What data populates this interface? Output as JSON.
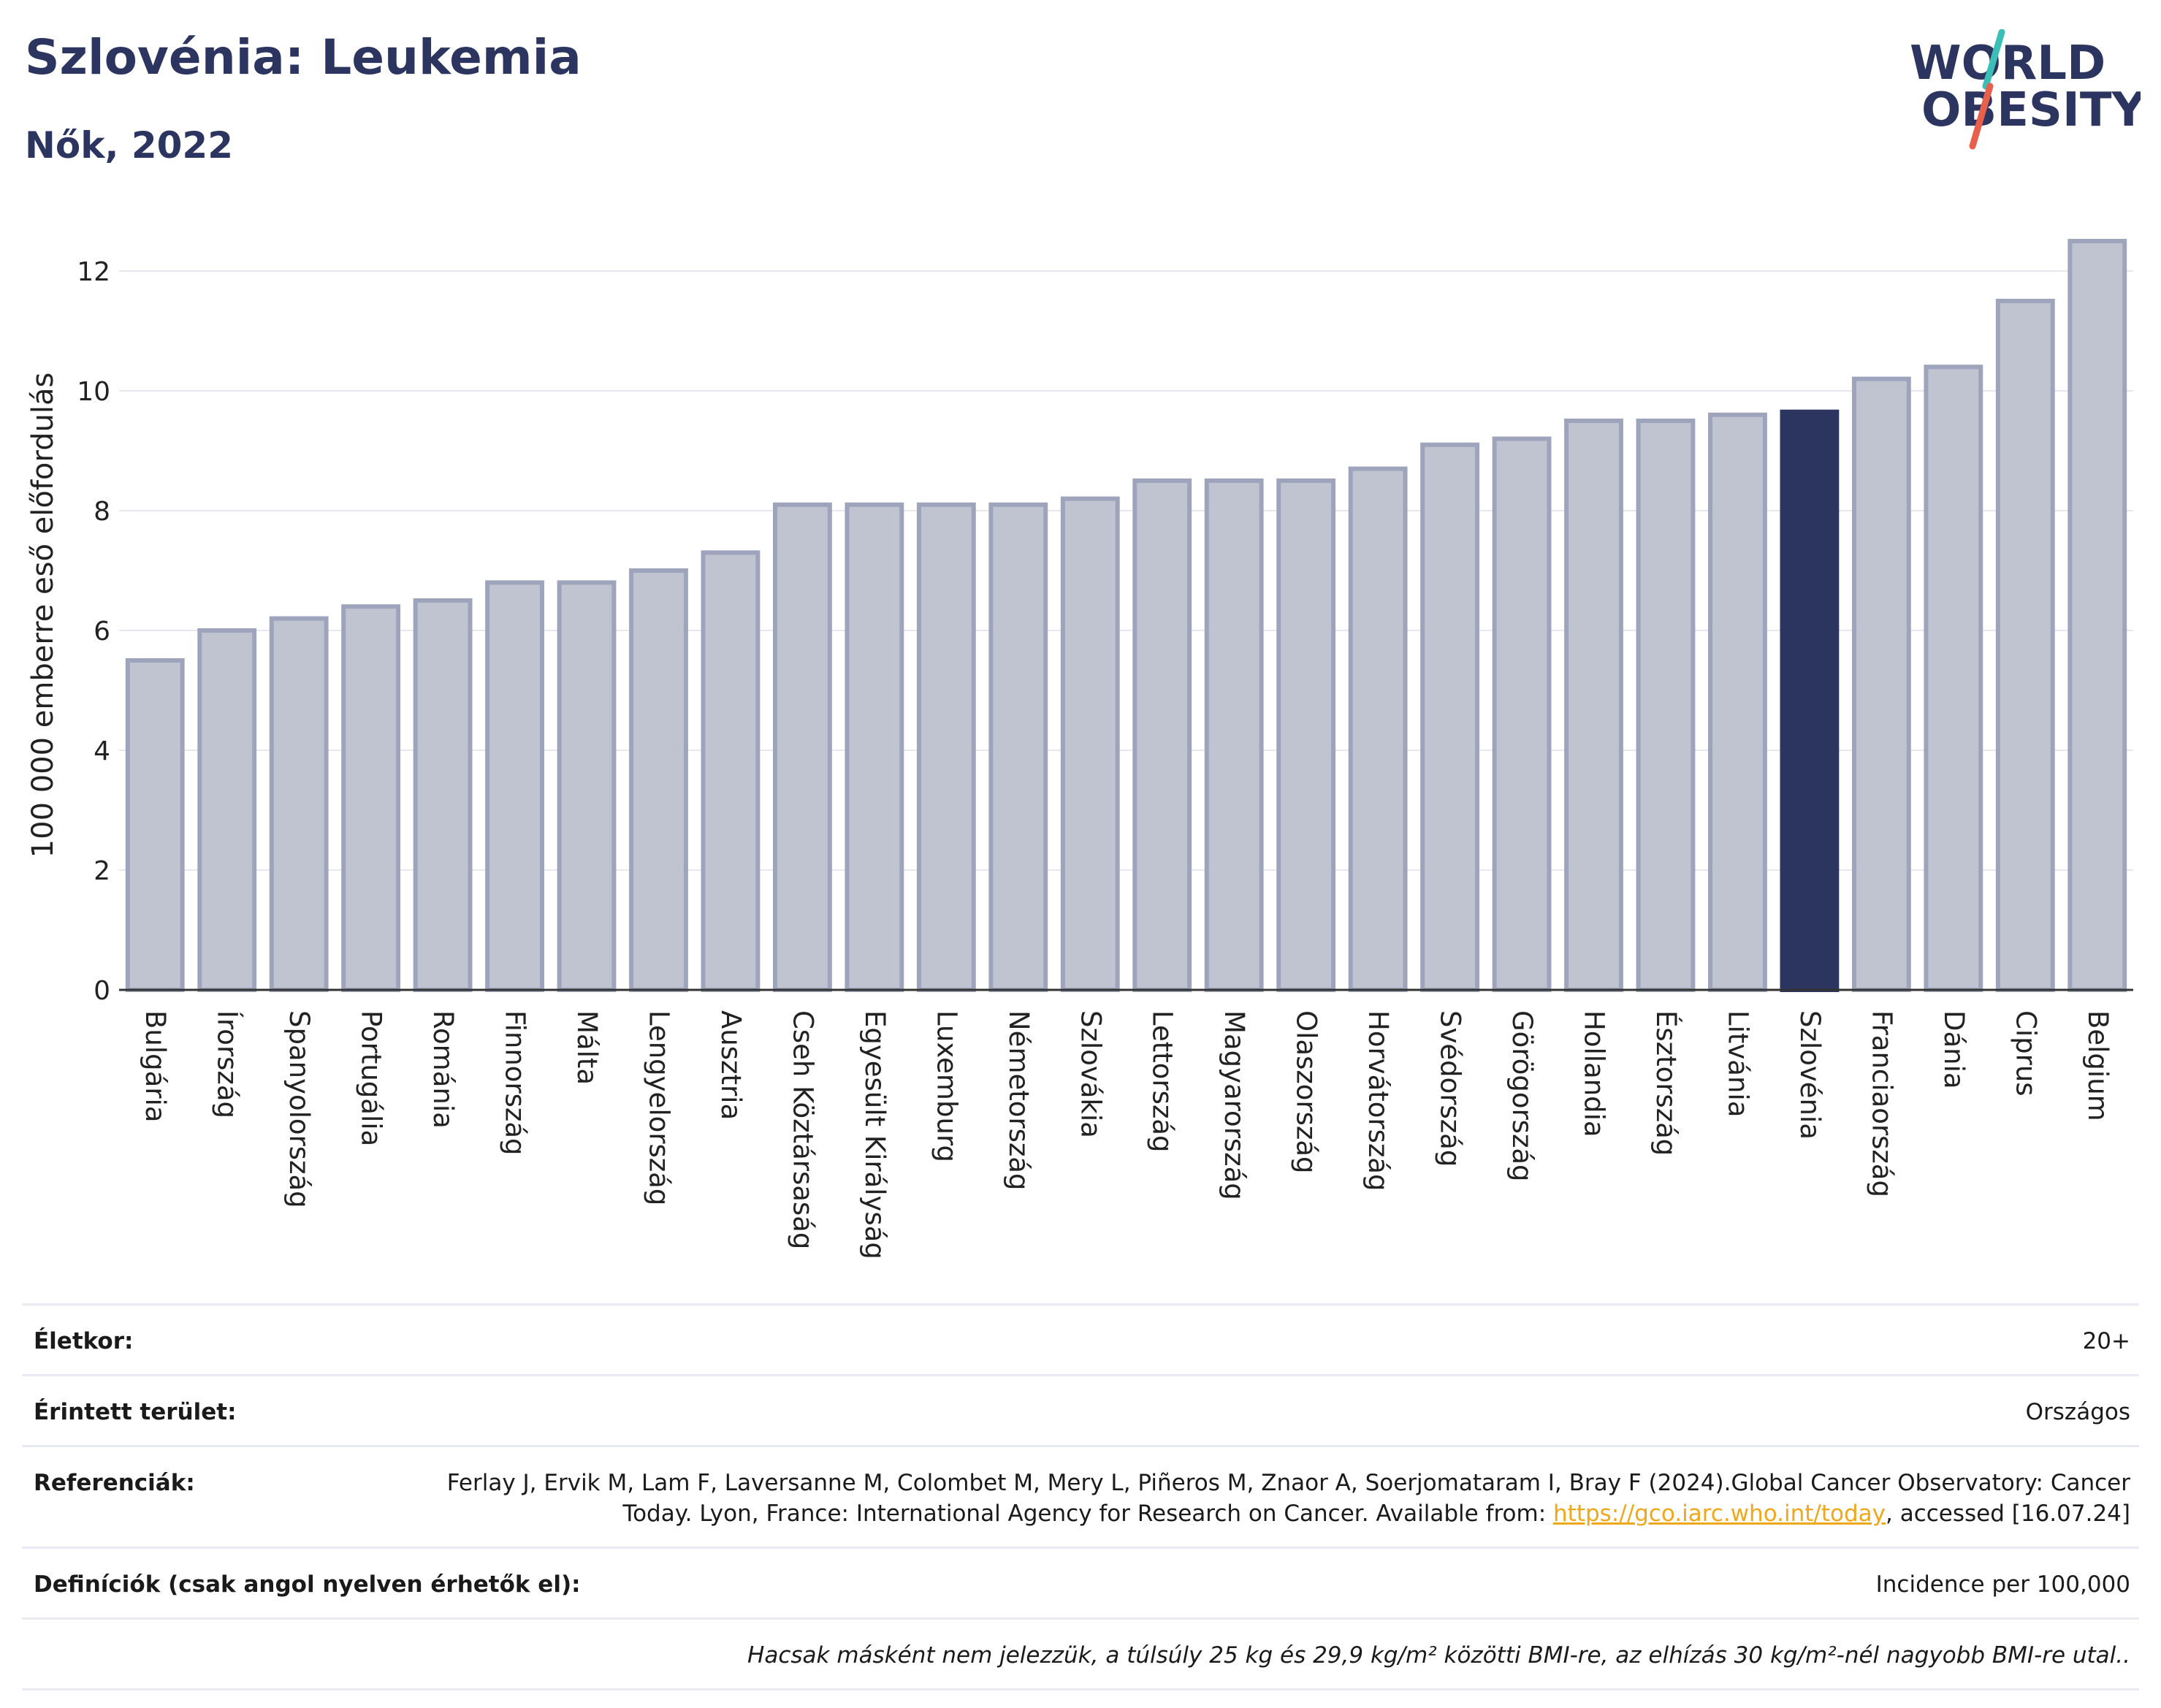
{
  "header": {
    "title": "Szlovénia: Leukemia",
    "subtitle": "Nők, 2022"
  },
  "logo": {
    "line1": "WORLD",
    "line2": "OBESITY",
    "slash_colors": [
      "#3bbfb6",
      "#e8604c"
    ],
    "text_color": "#2c3560"
  },
  "colors": {
    "bar_default": "#c0c4d1",
    "bar_border": "#9ea4bb",
    "bar_highlight": "#2b3560",
    "grid": "#e6e8f0",
    "axis": "#333333"
  },
  "chart_data": {
    "type": "bar",
    "ylabel": "100 000 emberre eső előfordulás",
    "ylim": [
      0,
      13
    ],
    "yticks": [
      0,
      2,
      4,
      6,
      8,
      10,
      12
    ],
    "grid": true,
    "highlight": "Szlovénia",
    "categories": [
      "Bulgária",
      "Írország",
      "Spanyolország",
      "Portugália",
      "Románia",
      "Finnország",
      "Málta",
      "Lengyelország",
      "Ausztria",
      "Cseh Köztársaság",
      "Egyesült Királyság",
      "Luxemburg",
      "Németország",
      "Szlovákia",
      "Lettország",
      "Magyarország",
      "Olaszország",
      "Horvátország",
      "Svédország",
      "Görögország",
      "Hollandia",
      "Észtország",
      "Litvánia",
      "Szlovénia",
      "Franciaország",
      "Dánia",
      "Ciprus",
      "Belgium"
    ],
    "values": [
      5.5,
      6.0,
      6.2,
      6.4,
      6.5,
      6.8,
      6.8,
      7.0,
      7.3,
      8.1,
      8.1,
      8.1,
      8.1,
      8.2,
      8.5,
      8.5,
      8.5,
      8.7,
      9.1,
      9.2,
      9.5,
      9.5,
      9.6,
      9.65,
      10.2,
      10.4,
      11.5,
      12.5
    ]
  },
  "info": {
    "age_label": "Életkor:",
    "age_value": "20+",
    "area_label": "Érintett terület:",
    "area_value": "Országos",
    "ref_label": "Referenciák:",
    "ref_text_1": "Ferlay J, Ervik M, Lam F, Laversanne M, Colombet M, Mery L, Piñeros M, Znaor A, Soerjomataram I, Bray F (2024).Global Cancer Observatory: Cancer Today. Lyon, France: International Agency for Research on Cancer. Available from: ",
    "ref_link": "https://gco.iarc.who.int/today",
    "ref_text_2": ", accessed [16.07.24]",
    "def_label": "Definíciók (csak angol nyelven érhetők el):",
    "def_value": "Incidence per 100,000",
    "note": "Hacsak másként nem jelezzük, a túlsúly 25 kg és 29,9 kg/m² közötti BMI-re, az elhízás 30 kg/m²-nél nagyobb BMI-re utal.."
  }
}
